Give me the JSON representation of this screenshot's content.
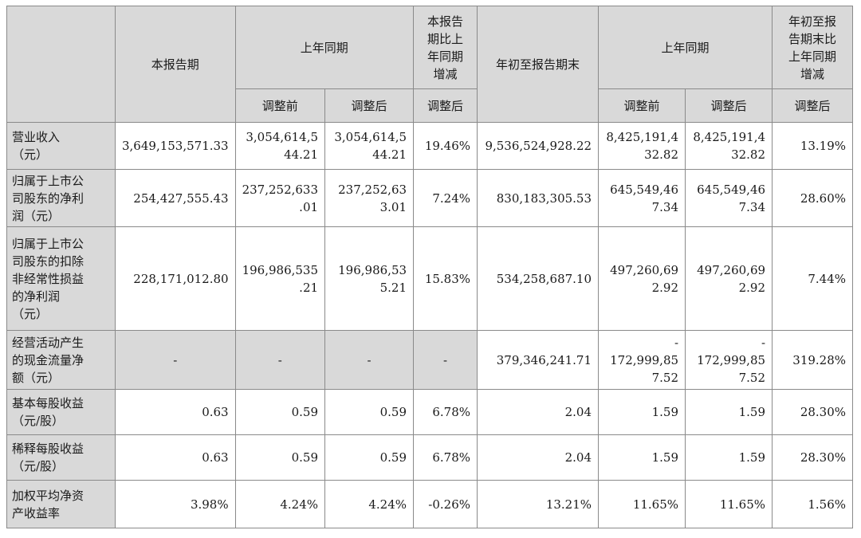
{
  "header": {
    "this_period": "本报告期",
    "prior_same_period": "上年同期",
    "yoy_change": "本报告\n期比上\n年同期\n增减",
    "ytd_end": "年初至报告期末",
    "prior_same_period_ytd": "上年同期",
    "ytd_yoy_change": "年初至报\n告期末比\n上年同期\n增减",
    "before_adj": "调整前",
    "after_adj": "调整后"
  },
  "rows": [
    {
      "label": "营业收入\n（元）",
      "cur": "3,649,153,571.33",
      "prior_before": "3,054,614,5\n44.21",
      "prior_after": "3,054,614,5\n44.21",
      "chg": "19.46%",
      "ytd": "9,536,524,928.22",
      "ytd_prior_before": "8,425,191,4\n32.82",
      "ytd_prior_after": "8,425,191,4\n32.82",
      "ytd_chg": "13.19%"
    },
    {
      "label": "归属于上市公\n司股东的净利\n润（元）",
      "cur": "254,427,555.43",
      "prior_before": "237,252,633\n.01",
      "prior_after": "237,252,63\n3.01",
      "chg": "7.24%",
      "ytd": "830,183,305.53",
      "ytd_prior_before": "645,549,46\n7.34",
      "ytd_prior_after": "645,549,46\n7.34",
      "ytd_chg": "28.60%"
    },
    {
      "label": "归属于上市公\n司股东的扣除\n非经常性损益\n的净利润\n（元）",
      "cur": "228,171,012.80",
      "prior_before": "196,986,535\n.21",
      "prior_after": "196,986,53\n5.21",
      "chg": "15.83%",
      "ytd": "534,258,687.10",
      "ytd_prior_before": "497,260,69\n2.92",
      "ytd_prior_after": "497,260,69\n2.92",
      "ytd_chg": "7.44%"
    },
    {
      "label": "经营活动产生\n的现金流量净\n额（元）",
      "cur": "-",
      "prior_before": "-",
      "prior_after": "-",
      "chg": "-",
      "ytd": "379,346,241.71",
      "ytd_prior_before": "-\n172,999,85\n7.52",
      "ytd_prior_after": "-\n172,999,85\n7.52",
      "ytd_chg": "319.28%"
    },
    {
      "label": "基本每股收益\n（元/股）",
      "cur": "0.63",
      "prior_before": "0.59",
      "prior_after": "0.59",
      "chg": "6.78%",
      "ytd": "2.04",
      "ytd_prior_before": "1.59",
      "ytd_prior_after": "1.59",
      "ytd_chg": "28.30%"
    },
    {
      "label": "稀释每股收益\n（元/股）",
      "cur": "0.63",
      "prior_before": "0.59",
      "prior_after": "0.59",
      "chg": "6.78%",
      "ytd": "2.04",
      "ytd_prior_before": "1.59",
      "ytd_prior_after": "1.59",
      "ytd_chg": "28.30%"
    },
    {
      "label": "加权平均净资\n产收益率",
      "cur": "3.98%",
      "prior_before": "4.24%",
      "prior_after": "4.24%",
      "chg": "-0.26%",
      "ytd": "13.21%",
      "ytd_prior_before": "11.65%",
      "ytd_prior_after": "11.65%",
      "ytd_chg": "1.56%"
    }
  ]
}
